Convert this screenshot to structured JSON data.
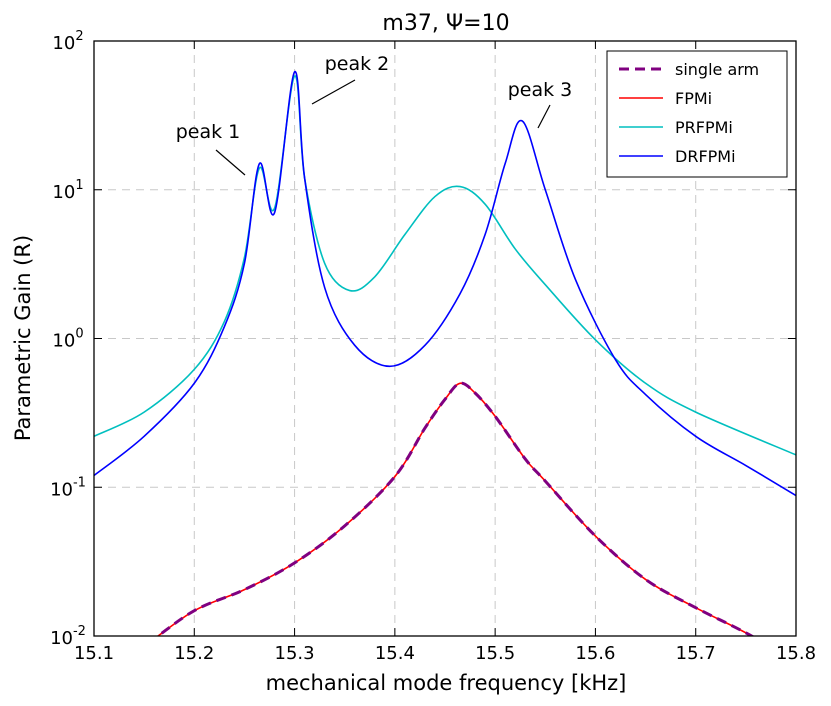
{
  "chart_data": {
    "type": "line",
    "title": "m37, Ψ=10",
    "xlabel": "mechanical mode frequency [kHz]",
    "ylabel": "Parametric Gain (R)",
    "xlim": [
      15.1,
      15.8
    ],
    "ylim": [
      0.01,
      100
    ],
    "yscale": "log",
    "grid": true,
    "legend_position": "top-right",
    "x_ticks": [
      "15.1",
      "15.2",
      "15.3",
      "15.4",
      "15.5",
      "15.6",
      "15.7",
      "15.8"
    ],
    "y_ticks": [
      {
        "base": "10",
        "exp": "-2",
        "value": 0.01
      },
      {
        "base": "10",
        "exp": "-1",
        "value": 0.1
      },
      {
        "base": "10",
        "exp": "0",
        "value": 1
      },
      {
        "base": "10",
        "exp": "1",
        "value": 10
      },
      {
        "base": "10",
        "exp": "2",
        "value": 100
      }
    ],
    "series": [
      {
        "name": "single arm",
        "color": "#800080",
        "style": "dashed",
        "x": [
          15.1,
          15.15,
          15.2,
          15.25,
          15.3,
          15.35,
          15.4,
          15.43,
          15.45,
          15.465,
          15.48,
          15.5,
          15.53,
          15.55,
          15.6,
          15.65,
          15.7,
          15.75,
          15.8
        ],
        "y": [
          0.0054,
          0.0086,
          0.0148,
          0.0205,
          0.031,
          0.055,
          0.118,
          0.25,
          0.39,
          0.5,
          0.43,
          0.3,
          0.155,
          0.11,
          0.047,
          0.024,
          0.0155,
          0.0105,
          0.0067
        ]
      },
      {
        "name": "FPMi",
        "color": "#ff0000",
        "style": "solid",
        "x": [
          15.1,
          15.15,
          15.2,
          15.25,
          15.3,
          15.35,
          15.4,
          15.43,
          15.45,
          15.465,
          15.48,
          15.5,
          15.53,
          15.55,
          15.6,
          15.65,
          15.7,
          15.75,
          15.8
        ],
        "y": [
          0.0054,
          0.0086,
          0.0148,
          0.0205,
          0.031,
          0.055,
          0.118,
          0.25,
          0.39,
          0.5,
          0.43,
          0.3,
          0.155,
          0.11,
          0.047,
          0.024,
          0.0155,
          0.0105,
          0.0067
        ]
      },
      {
        "name": "PRFPMi",
        "color": "#00bfbf",
        "style": "solid",
        "x": [
          15.1,
          15.15,
          15.2,
          15.23,
          15.25,
          15.265,
          15.28,
          15.3,
          15.31,
          15.33,
          15.355,
          15.38,
          15.41,
          15.44,
          15.465,
          15.49,
          15.52,
          15.55,
          15.6,
          15.65,
          15.7,
          15.8
        ],
        "y": [
          0.22,
          0.32,
          0.62,
          1.3,
          3.5,
          14.0,
          7.5,
          58.0,
          12.0,
          3.2,
          2.1,
          2.6,
          5.0,
          9.0,
          10.5,
          8.0,
          4.0,
          2.3,
          0.98,
          0.5,
          0.32,
          0.165
        ]
      },
      {
        "name": "DRFPMi",
        "color": "#0000ff",
        "style": "solid",
        "x": [
          15.1,
          15.15,
          15.2,
          15.23,
          15.25,
          15.265,
          15.28,
          15.3,
          15.31,
          15.33,
          15.36,
          15.395,
          15.43,
          15.465,
          15.49,
          15.51,
          15.527,
          15.55,
          15.58,
          15.62,
          15.65,
          15.7,
          15.75,
          15.8
        ],
        "y": [
          0.12,
          0.22,
          0.5,
          1.2,
          3.2,
          15.0,
          7.0,
          62.0,
          12.0,
          2.2,
          0.9,
          0.65,
          0.9,
          2.0,
          5.0,
          15.0,
          29.0,
          10.0,
          2.5,
          0.72,
          0.42,
          0.22,
          0.14,
          0.088
        ]
      }
    ],
    "annotations": [
      {
        "text": "peak 1",
        "x": 15.257,
        "y": 12.0
      },
      {
        "text": "peak 2",
        "x": 15.315,
        "y": 40.0
      },
      {
        "text": "peak 3",
        "x": 15.535,
        "y": 25.0
      }
    ]
  }
}
